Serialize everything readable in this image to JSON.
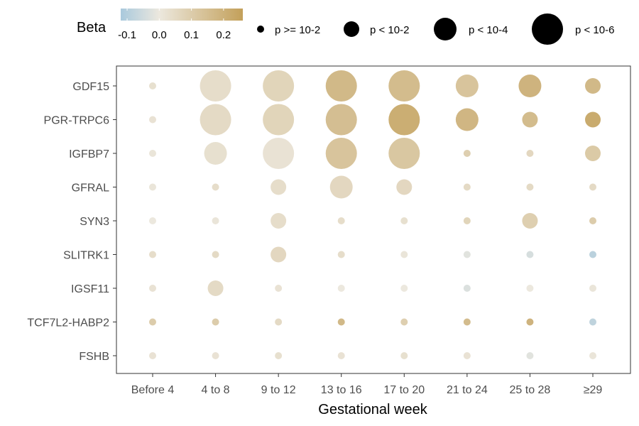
{
  "chart_data": {
    "type": "scatter",
    "subtype": "dot-matrix",
    "xlabel": "Gestational week",
    "ylabel": "",
    "categories_x": [
      "Before 4",
      "4 to 8",
      "9 to 12",
      "13 to 16",
      "17 to 20",
      "21 to 24",
      "25 to 28",
      "≥29"
    ],
    "categories_y": [
      "GDF15",
      "PGR-TRPC6",
      "IGFBP7",
      "GFRAL",
      "SYN3",
      "SLITRK1",
      "IGSF11",
      "TCF7L2-HABP2",
      "FSHB"
    ],
    "grid": false,
    "color_legend": {
      "title": "Beta",
      "ticks": [
        "-0.1",
        "0.0",
        "0.1",
        "0.2"
      ],
      "tick_values": [
        -0.1,
        0.0,
        0.1,
        0.2
      ],
      "range": [
        -0.12,
        0.26
      ],
      "low_color": "#a9c9dd",
      "mid_color": "#ece8de",
      "high_color": "#c3a05a"
    },
    "size_legend": {
      "items": [
        {
          "label": "p >= 10-2",
          "level": 1
        },
        {
          "label": "p < 10-2",
          "level": 2
        },
        {
          "label": "p < 10-4",
          "level": 3
        },
        {
          "label": "p < 10-6",
          "level": 4
        }
      ]
    },
    "legend_position": "top",
    "points": [
      {
        "y": "GDF15",
        "x": "Before 4",
        "beta": 0.03,
        "p_level": 1
      },
      {
        "y": "GDF15",
        "x": "4 to 8",
        "beta": 0.04,
        "p_level": 4
      },
      {
        "y": "GDF15",
        "x": "9 to 12",
        "beta": 0.07,
        "p_level": 4
      },
      {
        "y": "GDF15",
        "x": "13 to 16",
        "beta": 0.17,
        "p_level": 4
      },
      {
        "y": "GDF15",
        "x": "17 to 20",
        "beta": 0.16,
        "p_level": 4
      },
      {
        "y": "GDF15",
        "x": "21 to 24",
        "beta": 0.13,
        "p_level": 3
      },
      {
        "y": "GDF15",
        "x": "25 to 28",
        "beta": 0.19,
        "p_level": 3
      },
      {
        "y": "GDF15",
        "x": "≥29",
        "beta": 0.17,
        "p_level": 2
      },
      {
        "y": "PGR-TRPC6",
        "x": "Before 4",
        "beta": 0.02,
        "p_level": 1
      },
      {
        "y": "PGR-TRPC6",
        "x": "4 to 8",
        "beta": 0.05,
        "p_level": 4
      },
      {
        "y": "PGR-TRPC6",
        "x": "9 to 12",
        "beta": 0.07,
        "p_level": 4
      },
      {
        "y": "PGR-TRPC6",
        "x": "13 to 16",
        "beta": 0.15,
        "p_level": 4
      },
      {
        "y": "PGR-TRPC6",
        "x": "17 to 20",
        "beta": 0.21,
        "p_level": 4
      },
      {
        "y": "PGR-TRPC6",
        "x": "21 to 24",
        "beta": 0.18,
        "p_level": 3
      },
      {
        "y": "PGR-TRPC6",
        "x": "25 to 28",
        "beta": 0.16,
        "p_level": 2
      },
      {
        "y": "PGR-TRPC6",
        "x": "≥29",
        "beta": 0.22,
        "p_level": 2
      },
      {
        "y": "IGFBP7",
        "x": "Before 4",
        "beta": 0.01,
        "p_level": 1
      },
      {
        "y": "IGFBP7",
        "x": "4 to 8",
        "beta": 0.03,
        "p_level": 3
      },
      {
        "y": "IGFBP7",
        "x": "9 to 12",
        "beta": 0.02,
        "p_level": 4
      },
      {
        "y": "IGFBP7",
        "x": "13 to 16",
        "beta": 0.13,
        "p_level": 4
      },
      {
        "y": "IGFBP7",
        "x": "17 to 20",
        "beta": 0.12,
        "p_level": 4
      },
      {
        "y": "IGFBP7",
        "x": "21 to 24",
        "beta": 0.09,
        "p_level": 1
      },
      {
        "y": "IGFBP7",
        "x": "25 to 28",
        "beta": 0.06,
        "p_level": 1
      },
      {
        "y": "IGFBP7",
        "x": "≥29",
        "beta": 0.11,
        "p_level": 2
      },
      {
        "y": "GFRAL",
        "x": "Before 4",
        "beta": 0.01,
        "p_level": 1
      },
      {
        "y": "GFRAL",
        "x": "4 to 8",
        "beta": 0.04,
        "p_level": 1
      },
      {
        "y": "GFRAL",
        "x": "9 to 12",
        "beta": 0.04,
        "p_level": 2
      },
      {
        "y": "GFRAL",
        "x": "13 to 16",
        "beta": 0.06,
        "p_level": 3
      },
      {
        "y": "GFRAL",
        "x": "17 to 20",
        "beta": 0.06,
        "p_level": 2
      },
      {
        "y": "GFRAL",
        "x": "21 to 24",
        "beta": 0.05,
        "p_level": 1
      },
      {
        "y": "GFRAL",
        "x": "25 to 28",
        "beta": 0.05,
        "p_level": 1
      },
      {
        "y": "GFRAL",
        "x": "≥29",
        "beta": 0.05,
        "p_level": 1
      },
      {
        "y": "SYN3",
        "x": "Before 4",
        "beta": 0.0,
        "p_level": 1
      },
      {
        "y": "SYN3",
        "x": "4 to 8",
        "beta": 0.01,
        "p_level": 1
      },
      {
        "y": "SYN3",
        "x": "9 to 12",
        "beta": 0.04,
        "p_level": 2
      },
      {
        "y": "SYN3",
        "x": "13 to 16",
        "beta": 0.04,
        "p_level": 1
      },
      {
        "y": "SYN3",
        "x": "17 to 20",
        "beta": 0.03,
        "p_level": 1
      },
      {
        "y": "SYN3",
        "x": "21 to 24",
        "beta": 0.07,
        "p_level": 1
      },
      {
        "y": "SYN3",
        "x": "25 to 28",
        "beta": 0.09,
        "p_level": 2
      },
      {
        "y": "SYN3",
        "x": "≥29",
        "beta": 0.1,
        "p_level": 1
      },
      {
        "y": "SLITRK1",
        "x": "Before 4",
        "beta": 0.04,
        "p_level": 1
      },
      {
        "y": "SLITRK1",
        "x": "4 to 8",
        "beta": 0.05,
        "p_level": 1
      },
      {
        "y": "SLITRK1",
        "x": "9 to 12",
        "beta": 0.06,
        "p_level": 2
      },
      {
        "y": "SLITRK1",
        "x": "13 to 16",
        "beta": 0.04,
        "p_level": 1
      },
      {
        "y": "SLITRK1",
        "x": "17 to 20",
        "beta": 0.01,
        "p_level": 1
      },
      {
        "y": "SLITRK1",
        "x": "21 to 24",
        "beta": -0.02,
        "p_level": 1
      },
      {
        "y": "SLITRK1",
        "x": "25 to 28",
        "beta": -0.04,
        "p_level": 1
      },
      {
        "y": "SLITRK1",
        "x": "≥29",
        "beta": -0.09,
        "p_level": 1
      },
      {
        "y": "IGSF11",
        "x": "Before 4",
        "beta": 0.02,
        "p_level": 1
      },
      {
        "y": "IGSF11",
        "x": "4 to 8",
        "beta": 0.05,
        "p_level": 2
      },
      {
        "y": "IGSF11",
        "x": "9 to 12",
        "beta": 0.02,
        "p_level": 1
      },
      {
        "y": "IGSF11",
        "x": "13 to 16",
        "beta": 0.0,
        "p_level": 1
      },
      {
        "y": "IGSF11",
        "x": "17 to 20",
        "beta": 0.0,
        "p_level": 1
      },
      {
        "y": "IGSF11",
        "x": "21 to 24",
        "beta": -0.03,
        "p_level": 1
      },
      {
        "y": "IGSF11",
        "x": "25 to 28",
        "beta": 0.0,
        "p_level": 1
      },
      {
        "y": "IGSF11",
        "x": "≥29",
        "beta": 0.01,
        "p_level": 1
      },
      {
        "y": "TCF7L2-HABP2",
        "x": "Before 4",
        "beta": 0.1,
        "p_level": 1
      },
      {
        "y": "TCF7L2-HABP2",
        "x": "4 to 8",
        "beta": 0.1,
        "p_level": 1
      },
      {
        "y": "TCF7L2-HABP2",
        "x": "9 to 12",
        "beta": 0.05,
        "p_level": 1
      },
      {
        "y": "TCF7L2-HABP2",
        "x": "13 to 16",
        "beta": 0.17,
        "p_level": 1
      },
      {
        "y": "TCF7L2-HABP2",
        "x": "17 to 20",
        "beta": 0.09,
        "p_level": 1
      },
      {
        "y": "TCF7L2-HABP2",
        "x": "21 to 24",
        "beta": 0.16,
        "p_level": 1
      },
      {
        "y": "TCF7L2-HABP2",
        "x": "25 to 28",
        "beta": 0.19,
        "p_level": 1
      },
      {
        "y": "TCF7L2-HABP2",
        "x": "≥29",
        "beta": -0.08,
        "p_level": 1
      },
      {
        "y": "FSHB",
        "x": "Before 4",
        "beta": 0.02,
        "p_level": 1
      },
      {
        "y": "FSHB",
        "x": "4 to 8",
        "beta": 0.02,
        "p_level": 1
      },
      {
        "y": "FSHB",
        "x": "9 to 12",
        "beta": 0.03,
        "p_level": 1
      },
      {
        "y": "FSHB",
        "x": "13 to 16",
        "beta": 0.02,
        "p_level": 1
      },
      {
        "y": "FSHB",
        "x": "17 to 20",
        "beta": 0.03,
        "p_level": 1
      },
      {
        "y": "FSHB",
        "x": "21 to 24",
        "beta": 0.02,
        "p_level": 1
      },
      {
        "y": "FSHB",
        "x": "25 to 28",
        "beta": -0.02,
        "p_level": 1
      },
      {
        "y": "FSHB",
        "x": "≥29",
        "beta": 0.01,
        "p_level": 1
      }
    ]
  }
}
